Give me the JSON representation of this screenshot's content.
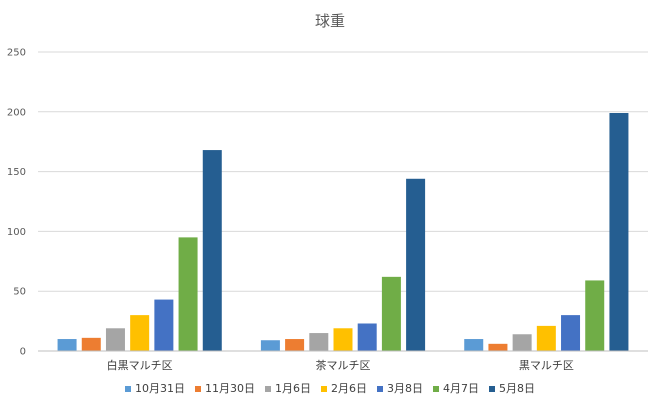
{
  "chart_data": {
    "type": "bar",
    "title": "球重",
    "xlabel": "",
    "ylabel": "",
    "ylim": [
      0,
      250
    ],
    "yticks": [
      0,
      50,
      100,
      150,
      200,
      250
    ],
    "grid": true,
    "legend_position": "bottom",
    "categories": [
      "白黒マルチ区",
      "茶マルチ区",
      "黒マルチ区"
    ],
    "series": [
      {
        "name": "10月31日",
        "color": "#5b9bd5",
        "values": [
          10,
          9,
          10
        ]
      },
      {
        "name": "11月30日",
        "color": "#ed7d31",
        "values": [
          11,
          10,
          6
        ]
      },
      {
        "name": "1月6日",
        "color": "#a5a5a5",
        "values": [
          19,
          15,
          14
        ]
      },
      {
        "name": "2月6日",
        "color": "#ffc000",
        "values": [
          30,
          19,
          21
        ]
      },
      {
        "name": "3月8日",
        "color": "#4472c4",
        "values": [
          43,
          23,
          30
        ]
      },
      {
        "name": "4月7日",
        "color": "#70ad47",
        "values": [
          95,
          62,
          59
        ]
      },
      {
        "name": "5月8日",
        "color": "#255e91",
        "values": [
          168,
          144,
          199
        ]
      }
    ]
  }
}
